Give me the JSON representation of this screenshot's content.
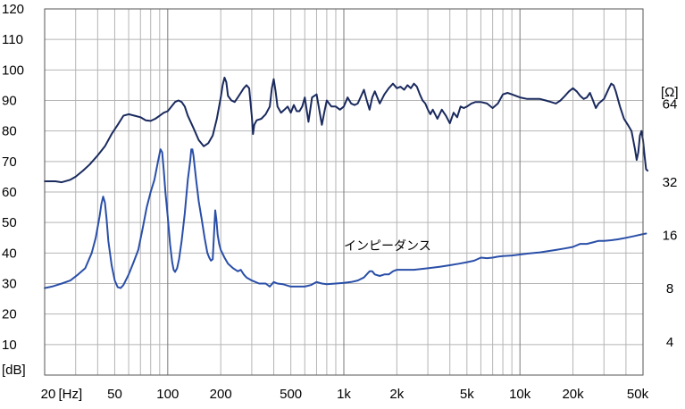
{
  "chart_data": {
    "type": "line",
    "x_scale": "log",
    "x_range_hz": [
      20,
      50000
    ],
    "y_left": {
      "unit_label": "[dB]",
      "range": [
        0,
        120
      ],
      "ticks": [
        "120",
        "110",
        "100",
        "90",
        "80",
        "70",
        "60",
        "50",
        "40",
        "30",
        "20",
        "10"
      ]
    },
    "y_right": {
      "unit_label": "[Ω]",
      "ticks": [
        {
          "label": "64",
          "db": 88.8
        },
        {
          "label": "32",
          "db": 63.2
        },
        {
          "label": "16",
          "db": 45.8
        },
        {
          "label": "8",
          "db": 28.4
        },
        {
          "label": "4",
          "db": 10.9
        }
      ]
    },
    "x_ticks": [
      {
        "label": "20",
        "hz": 20
      },
      {
        "label": "[Hz]",
        "hz": 28
      },
      {
        "label": "50",
        "hz": 50
      },
      {
        "label": "100",
        "hz": 100
      },
      {
        "label": "200",
        "hz": 200
      },
      {
        "label": "500",
        "hz": 500
      },
      {
        "label": "1k",
        "hz": 1000
      },
      {
        "label": "2k",
        "hz": 2000
      },
      {
        "label": "5k",
        "hz": 5000
      },
      {
        "label": "10k",
        "hz": 10000
      },
      {
        "label": "20k",
        "hz": 20000
      },
      {
        "label": "50k",
        "hz": 50000
      }
    ],
    "grid": true,
    "annotation": {
      "text": "インピーダンス",
      "hz": 1000,
      "db": 41
    },
    "series": [
      {
        "name": "",
        "color": "#1a2a5e",
        "points": [
          [
            20,
            63.5
          ],
          [
            23,
            63.5
          ],
          [
            25,
            63.2
          ],
          [
            28,
            64
          ],
          [
            30,
            65
          ],
          [
            33,
            67
          ],
          [
            36,
            69
          ],
          [
            40,
            72
          ],
          [
            44,
            75
          ],
          [
            48,
            79
          ],
          [
            52,
            82
          ],
          [
            56,
            85
          ],
          [
            60,
            85.5
          ],
          [
            65,
            85
          ],
          [
            70,
            84.5
          ],
          [
            75,
            83.5
          ],
          [
            80,
            83.3
          ],
          [
            85,
            84
          ],
          [
            90,
            85
          ],
          [
            95,
            86
          ],
          [
            100,
            86.5
          ],
          [
            105,
            88
          ],
          [
            110,
            89.5
          ],
          [
            115,
            90
          ],
          [
            120,
            89.5
          ],
          [
            125,
            88
          ],
          [
            130,
            85
          ],
          [
            140,
            81
          ],
          [
            150,
            77
          ],
          [
            160,
            75
          ],
          [
            170,
            76
          ],
          [
            180,
            78.5
          ],
          [
            190,
            84
          ],
          [
            200,
            91
          ],
          [
            205,
            95
          ],
          [
            210,
            97.5
          ],
          [
            215,
            96
          ],
          [
            220,
            91.5
          ],
          [
            230,
            90
          ],
          [
            240,
            89.5
          ],
          [
            250,
            91
          ],
          [
            260,
            92.5
          ],
          [
            270,
            94
          ],
          [
            280,
            95
          ],
          [
            290,
            94
          ],
          [
            300,
            85
          ],
          [
            305,
            79
          ],
          [
            310,
            82
          ],
          [
            320,
            83.5
          ],
          [
            340,
            84
          ],
          [
            360,
            85.5
          ],
          [
            380,
            88
          ],
          [
            390,
            94
          ],
          [
            400,
            97
          ],
          [
            410,
            93
          ],
          [
            420,
            88
          ],
          [
            440,
            86
          ],
          [
            460,
            87
          ],
          [
            480,
            88
          ],
          [
            500,
            86
          ],
          [
            520,
            88.5
          ],
          [
            540,
            86.5
          ],
          [
            560,
            86.5
          ],
          [
            580,
            88
          ],
          [
            600,
            91
          ],
          [
            630,
            83
          ],
          [
            660,
            91
          ],
          [
            700,
            92
          ],
          [
            750,
            82
          ],
          [
            780,
            87
          ],
          [
            800,
            90
          ],
          [
            850,
            88
          ],
          [
            900,
            88
          ],
          [
            950,
            87
          ],
          [
            1000,
            88
          ],
          [
            1050,
            91
          ],
          [
            1100,
            89
          ],
          [
            1150,
            88.5
          ],
          [
            1200,
            89
          ],
          [
            1300,
            93.5
          ],
          [
            1350,
            90
          ],
          [
            1400,
            87
          ],
          [
            1450,
            91
          ],
          [
            1500,
            93
          ],
          [
            1600,
            89
          ],
          [
            1700,
            92
          ],
          [
            1800,
            94
          ],
          [
            1900,
            95.5
          ],
          [
            2000,
            94
          ],
          [
            2100,
            94.5
          ],
          [
            2200,
            93.5
          ],
          [
            2300,
            95
          ],
          [
            2400,
            94
          ],
          [
            2500,
            95.5
          ],
          [
            2600,
            94.5
          ],
          [
            2700,
            92
          ],
          [
            2800,
            90
          ],
          [
            2900,
            89
          ],
          [
            3000,
            87
          ],
          [
            3100,
            85.5
          ],
          [
            3200,
            87
          ],
          [
            3400,
            84
          ],
          [
            3600,
            87
          ],
          [
            3800,
            85
          ],
          [
            4000,
            82.5
          ],
          [
            4200,
            86
          ],
          [
            4400,
            84.5
          ],
          [
            4600,
            88
          ],
          [
            4800,
            87.5
          ],
          [
            5000,
            88
          ],
          [
            5300,
            89
          ],
          [
            5600,
            89.5
          ],
          [
            6000,
            89.5
          ],
          [
            6500,
            89
          ],
          [
            7000,
            87.5
          ],
          [
            7500,
            89
          ],
          [
            8000,
            92
          ],
          [
            8500,
            92.5
          ],
          [
            9000,
            92
          ],
          [
            10000,
            91
          ],
          [
            11000,
            90.5
          ],
          [
            12000,
            90.5
          ],
          [
            13000,
            90.5
          ],
          [
            14000,
            90
          ],
          [
            15000,
            89.5
          ],
          [
            16000,
            89
          ],
          [
            17000,
            90
          ],
          [
            18000,
            91.5
          ],
          [
            19000,
            93
          ],
          [
            20000,
            94
          ],
          [
            21000,
            93
          ],
          [
            22000,
            91.5
          ],
          [
            23000,
            90.5
          ],
          [
            24000,
            91
          ],
          [
            25000,
            92.5
          ],
          [
            26000,
            90
          ],
          [
            27000,
            87.5
          ],
          [
            28000,
            89
          ],
          [
            30000,
            90.5
          ],
          [
            32000,
            94
          ],
          [
            33000,
            95.5
          ],
          [
            34000,
            95
          ],
          [
            35000,
            93
          ],
          [
            37000,
            88
          ],
          [
            39000,
            84
          ],
          [
            41000,
            82
          ],
          [
            43000,
            80
          ],
          [
            45000,
            74
          ],
          [
            46000,
            70.5
          ],
          [
            47000,
            73
          ],
          [
            48000,
            78.5
          ],
          [
            49000,
            80
          ],
          [
            50000,
            77
          ],
          [
            51000,
            72
          ],
          [
            52000,
            67.5
          ],
          [
            53000,
            67
          ]
        ]
      },
      {
        "name": "インピーダンス",
        "color": "#2a4fa8",
        "points": [
          [
            20,
            28.5
          ],
          [
            22,
            29
          ],
          [
            25,
            30
          ],
          [
            28,
            31
          ],
          [
            31,
            33
          ],
          [
            34,
            35
          ],
          [
            37,
            40
          ],
          [
            39,
            45
          ],
          [
            41,
            52
          ],
          [
            42,
            56
          ],
          [
            43,
            58.5
          ],
          [
            44,
            56.5
          ],
          [
            45,
            51
          ],
          [
            46,
            44
          ],
          [
            48,
            36
          ],
          [
            50,
            31
          ],
          [
            52,
            28.8
          ],
          [
            54,
            28.5
          ],
          [
            56,
            29.5
          ],
          [
            60,
            33
          ],
          [
            64,
            37
          ],
          [
            68,
            41
          ],
          [
            72,
            48
          ],
          [
            76,
            55
          ],
          [
            80,
            60
          ],
          [
            84,
            64
          ],
          [
            88,
            70
          ],
          [
            91,
            74
          ],
          [
            93,
            73
          ],
          [
            95,
            67
          ],
          [
            97,
            60
          ],
          [
            100,
            52
          ],
          [
            103,
            43
          ],
          [
            106,
            37
          ],
          [
            108,
            34.5
          ],
          [
            110,
            33.8
          ],
          [
            113,
            35
          ],
          [
            116,
            38
          ],
          [
            120,
            44
          ],
          [
            125,
            53
          ],
          [
            130,
            64
          ],
          [
            134,
            70
          ],
          [
            136,
            74
          ],
          [
            138,
            74
          ],
          [
            140,
            72
          ],
          [
            145,
            64
          ],
          [
            150,
            57
          ],
          [
            156,
            51
          ],
          [
            162,
            45
          ],
          [
            168,
            40
          ],
          [
            172,
            38.5
          ],
          [
            176,
            37.5
          ],
          [
            180,
            38
          ],
          [
            183,
            46
          ],
          [
            186,
            54
          ],
          [
            189,
            51
          ],
          [
            192,
            46
          ],
          [
            196,
            43
          ],
          [
            200,
            41
          ],
          [
            210,
            38.5
          ],
          [
            220,
            36.5
          ],
          [
            235,
            35
          ],
          [
            250,
            34
          ],
          [
            260,
            34.5
          ],
          [
            270,
            33
          ],
          [
            280,
            32
          ],
          [
            300,
            31
          ],
          [
            330,
            30
          ],
          [
            360,
            30
          ],
          [
            380,
            29
          ],
          [
            400,
            30.5
          ],
          [
            420,
            30
          ],
          [
            450,
            29.8
          ],
          [
            500,
            29
          ],
          [
            550,
            29
          ],
          [
            600,
            29
          ],
          [
            650,
            29.5
          ],
          [
            700,
            30.5
          ],
          [
            750,
            30
          ],
          [
            800,
            29.8
          ],
          [
            900,
            30
          ],
          [
            1000,
            30.2
          ],
          [
            1100,
            30.5
          ],
          [
            1200,
            31
          ],
          [
            1300,
            32
          ],
          [
            1400,
            34
          ],
          [
            1450,
            34
          ],
          [
            1500,
            33
          ],
          [
            1600,
            32.5
          ],
          [
            1700,
            33
          ],
          [
            1800,
            33
          ],
          [
            1900,
            34
          ],
          [
            2000,
            34.5
          ],
          [
            2200,
            34.5
          ],
          [
            2500,
            34.5
          ],
          [
            3000,
            35
          ],
          [
            3500,
            35.5
          ],
          [
            4000,
            36
          ],
          [
            4500,
            36.5
          ],
          [
            5000,
            37
          ],
          [
            5500,
            37.5
          ],
          [
            6000,
            38.5
          ],
          [
            6500,
            38.3
          ],
          [
            7000,
            38.5
          ],
          [
            7500,
            38.8
          ],
          [
            8000,
            39
          ],
          [
            9000,
            39.2
          ],
          [
            10000,
            39.5
          ],
          [
            11000,
            39.8
          ],
          [
            12000,
            40
          ],
          [
            13000,
            40.2
          ],
          [
            14000,
            40.5
          ],
          [
            16000,
            41
          ],
          [
            18000,
            41.5
          ],
          [
            20000,
            42
          ],
          [
            22000,
            43
          ],
          [
            24000,
            43
          ],
          [
            26000,
            43.5
          ],
          [
            28000,
            44
          ],
          [
            30000,
            44
          ],
          [
            33000,
            44.2
          ],
          [
            36000,
            44.5
          ],
          [
            40000,
            45
          ],
          [
            45000,
            45.6
          ],
          [
            50000,
            46.2
          ],
          [
            52000,
            46.4
          ]
        ]
      }
    ]
  }
}
